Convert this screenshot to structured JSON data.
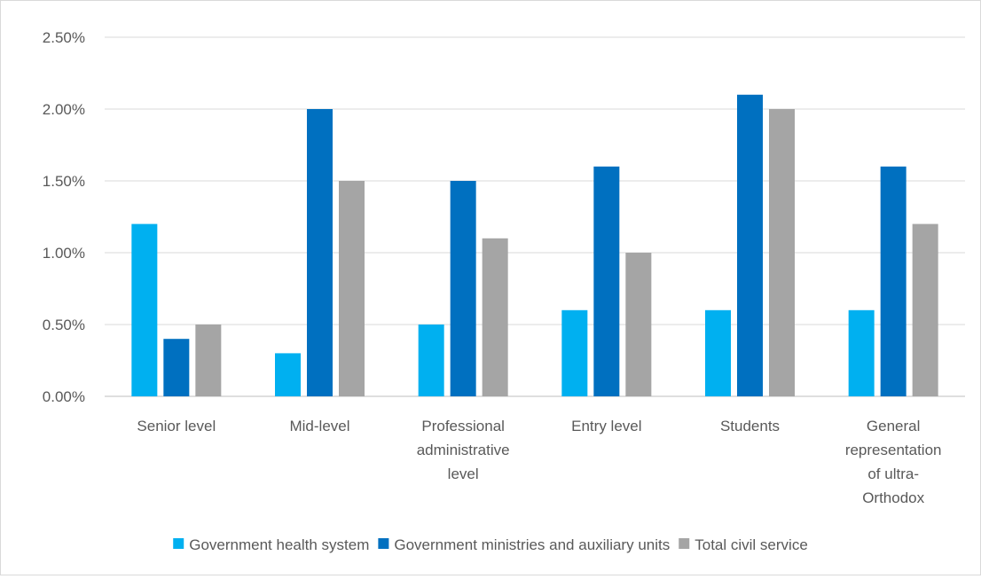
{
  "chart_data": {
    "type": "bar",
    "title": "",
    "xlabel": "",
    "ylabel": "",
    "ylim": [
      0,
      0.025
    ],
    "y_ticks": [
      "0.00%",
      "0.50%",
      "1.00%",
      "1.50%",
      "2.00%",
      "2.50%"
    ],
    "grid": true,
    "legend_position": "bottom",
    "categories": [
      [
        "Senior level"
      ],
      [
        "Mid-level"
      ],
      [
        "Professional",
        "administrative",
        "level"
      ],
      [
        "Entry level"
      ],
      [
        "Students"
      ],
      [
        "General",
        "representation",
        "of ultra-",
        "Orthodox"
      ]
    ],
    "series": [
      {
        "name": "Government health system",
        "color": "#00b0f0",
        "values": [
          0.012,
          0.003,
          0.005,
          0.006,
          0.006,
          0.006
        ]
      },
      {
        "name": "Government ministries and auxiliary units",
        "color": "#0070c0",
        "values": [
          0.004,
          0.02,
          0.015,
          0.016,
          0.021,
          0.016
        ]
      },
      {
        "name": "Total civil service",
        "color": "#a5a5a5",
        "values": [
          0.005,
          0.015,
          0.011,
          0.01,
          0.02,
          0.012
        ]
      }
    ]
  }
}
